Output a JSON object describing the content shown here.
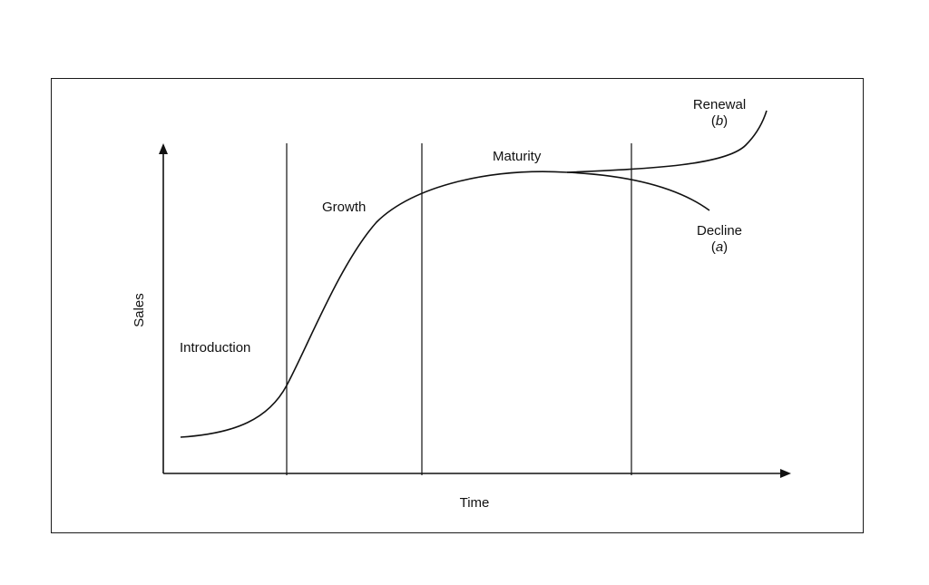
{
  "diagram": {
    "axes": {
      "x_label": "Time",
      "y_label": "Sales"
    },
    "stages": {
      "introduction": "Introduction",
      "growth": "Growth",
      "maturity": "Maturity",
      "renewal": {
        "label": "Renewal",
        "tag": "b"
      },
      "decline": {
        "label": "Decline",
        "tag": "a"
      }
    },
    "colors": {
      "line": "#111111",
      "background": "#ffffff"
    }
  }
}
